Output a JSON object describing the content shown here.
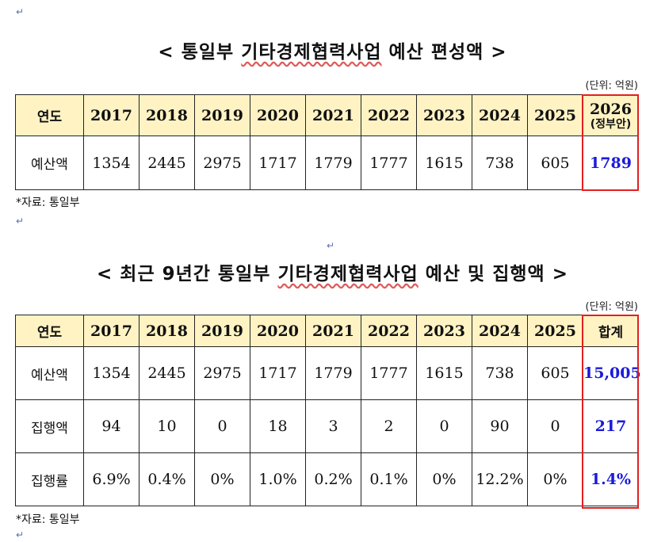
{
  "table1": {
    "title_prefix": "< 통일부 ",
    "title_underlined": "기타경제협력사업",
    "title_suffix": " 예산 편성액 >",
    "unit": "(단위: 억원)",
    "header_label": "연도",
    "years": [
      "2017",
      "2018",
      "2019",
      "2020",
      "2021",
      "2022",
      "2023",
      "2024",
      "2025"
    ],
    "last_year": "2026",
    "last_year_note": "(정부안)",
    "row_label": "예산액",
    "values": [
      "1354",
      "2445",
      "2975",
      "1717",
      "1779",
      "1777",
      "1615",
      "738",
      "605"
    ],
    "last_value": "1789",
    "source": "*자료: 통일부"
  },
  "table2": {
    "title_prefix": "< 최근 9년간 통일부 ",
    "title_underlined": "기타경제협력사업",
    "title_suffix": " 예산 및 집행액 >",
    "unit": "(단위: 억원)",
    "header_label": "연도",
    "years": [
      "2017",
      "2018",
      "2019",
      "2020",
      "2021",
      "2022",
      "2023",
      "2024",
      "2025"
    ],
    "total_label": "합계",
    "rows": [
      {
        "label": "예산액",
        "values": [
          "1354",
          "2445",
          "2975",
          "1717",
          "1779",
          "1777",
          "1615",
          "738",
          "605"
        ],
        "total": "15,005"
      },
      {
        "label": "집행액",
        "values": [
          "94",
          "10",
          "0",
          "18",
          "3",
          "2",
          "0",
          "90",
          "0"
        ],
        "total": "217"
      },
      {
        "label": "집행률",
        "values": [
          "6.9%",
          "0.4%",
          "0%",
          "1.0%",
          "0.2%",
          "0.1%",
          "0%",
          "12.2%",
          "0%"
        ],
        "total": "1.4%"
      }
    ],
    "source": "*자료: 통일부"
  },
  "colors": {
    "header_bg": "#fff3c4",
    "highlight_text": "#1a1adb",
    "highlight_box": "#e31f1f"
  }
}
